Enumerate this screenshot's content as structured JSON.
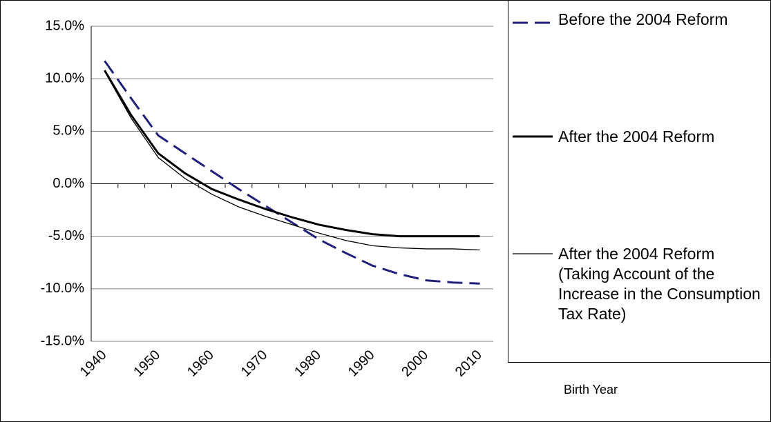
{
  "chart_data": {
    "type": "line",
    "x_label": "Birth Year",
    "categories": [
      "1940",
      null,
      "1950",
      null,
      "1960",
      null,
      "1970",
      null,
      "1980",
      null,
      "1990",
      null,
      "2000",
      null,
      "2010"
    ],
    "ylim": [
      -15,
      15
    ],
    "yticks": [
      {
        "value": -15,
        "label": "-15.0%"
      },
      {
        "value": -10,
        "label": "-10.0%"
      },
      {
        "value": -5,
        "label": "-5.0%"
      },
      {
        "value": 0,
        "label": "0.0%"
      },
      {
        "value": 5,
        "label": "5.0%"
      },
      {
        "value": 10,
        "label": "10.0%"
      },
      {
        "value": 15,
        "label": "15.0%"
      }
    ],
    "grid": true,
    "legend": "right",
    "series": [
      {
        "name": "Before the 2004 Reform",
        "color": "#1f1f7a",
        "style": "dashed",
        "values": [
          11.7,
          8.1,
          4.6,
          2.9,
          1.2,
          -0.5,
          -2.1,
          -3.7,
          -5.3,
          -6.6,
          -7.8,
          -8.6,
          -9.2,
          -9.4,
          -9.5
        ]
      },
      {
        "name": "After the 2004 Reform",
        "color": "#000000",
        "style": "thick",
        "values": [
          10.8,
          6.5,
          2.9,
          1.0,
          -0.5,
          -1.5,
          -2.4,
          -3.2,
          -3.9,
          -4.4,
          -4.8,
          -5.0,
          -5.0,
          -5.0,
          -5.0
        ]
      },
      {
        "name": "After the 2004 Reform (Taking Account of the Increase in the Consumption Tax Rate)",
        "color": "#000000",
        "style": "thin",
        "values": [
          10.7,
          6.2,
          2.5,
          0.5,
          -1.0,
          -2.2,
          -3.1,
          -3.9,
          -4.7,
          -5.4,
          -5.9,
          -6.1,
          -6.2,
          -6.2,
          -6.3
        ]
      }
    ]
  }
}
